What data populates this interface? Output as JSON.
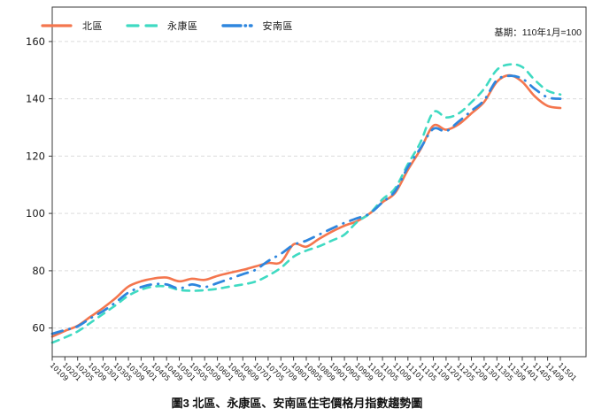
{
  "figure": {
    "base_note": "基期：110年1月=100",
    "caption": "圖3 北區、永康區、安南區住宅價格月指數趨勢圖"
  },
  "colors": {
    "grid": "#dcdcdc",
    "axis": "#3a3a3a",
    "text": "#1a1a1a",
    "north": "#F4764E",
    "yongkang": "#3FDAC2",
    "annan": "#2E86DE"
  },
  "chart_data": {
    "type": "line",
    "title": "圖3 北區、永康區、安南區住宅價格月指數趨勢圖",
    "note": "基期：110年1月=100",
    "xlabel": "",
    "ylabel": "",
    "ylim": [
      50,
      172
    ],
    "yticks": [
      60,
      80,
      100,
      120,
      140,
      160
    ],
    "grid": true,
    "legend_position": "top-left",
    "categories": [
      "10109",
      "10201",
      "10205",
      "10209",
      "10301",
      "10305",
      "10309",
      "10401",
      "10405",
      "10409",
      "10501",
      "10505",
      "10509",
      "10601",
      "10605",
      "10609",
      "10701",
      "10705",
      "10709",
      "10801",
      "10805",
      "10809",
      "10901",
      "10905",
      "10909",
      "11001",
      "11005",
      "11009",
      "11101",
      "11105",
      "11109",
      "11201",
      "11205",
      "11209",
      "11301",
      "11305",
      "11309",
      "11401",
      "11405",
      "11409",
      "11501"
    ],
    "series": [
      {
        "name": "北區",
        "color": "#F4764E",
        "line_style": "solid",
        "values": [
          57.0,
          59.0,
          60.8,
          63.9,
          67.0,
          70.5,
          74.5,
          76.3,
          77.3,
          77.6,
          76.3,
          77.2,
          76.8,
          78.2,
          79.3,
          80.3,
          81.5,
          82.7,
          83.0,
          89.2,
          88.4,
          91.1,
          93.6,
          95.7,
          97.3,
          100.0,
          103.9,
          107.2,
          115.2,
          122.4,
          130.6,
          129.2,
          131.1,
          134.9,
          138.9,
          145.9,
          148.2,
          145.9,
          140.8,
          137.5,
          136.8
        ]
      },
      {
        "name": "永康區",
        "color": "#3FDAC2",
        "line_style": "dashed",
        "values": [
          54.9,
          56.7,
          58.8,
          61.8,
          64.9,
          68.0,
          71.3,
          73.4,
          74.5,
          74.5,
          73.3,
          73.0,
          73.2,
          73.7,
          74.5,
          75.2,
          76.2,
          78.3,
          81.0,
          84.9,
          87.0,
          88.5,
          90.5,
          92.6,
          97.0,
          100.0,
          104.9,
          108.8,
          117.2,
          124.9,
          135.3,
          133.5,
          134.9,
          138.8,
          143.5,
          150.1,
          152.0,
          151.1,
          146.5,
          142.8,
          141.5
        ]
      },
      {
        "name": "安南區",
        "color": "#2E86DE",
        "line_style": "dashdot",
        "values": [
          58.0,
          59.3,
          60.6,
          63.4,
          65.9,
          69.0,
          72.4,
          74.3,
          75.3,
          75.2,
          73.8,
          75.2,
          74.3,
          75.7,
          77.2,
          78.8,
          80.3,
          83.4,
          85.9,
          89.0,
          90.5,
          92.6,
          94.7,
          96.7,
          98.3,
          100.0,
          103.9,
          107.8,
          116.2,
          122.8,
          129.5,
          128.7,
          132.1,
          135.8,
          139.5,
          146.5,
          148.0,
          147.0,
          143.4,
          140.5,
          140.0
        ]
      }
    ]
  }
}
